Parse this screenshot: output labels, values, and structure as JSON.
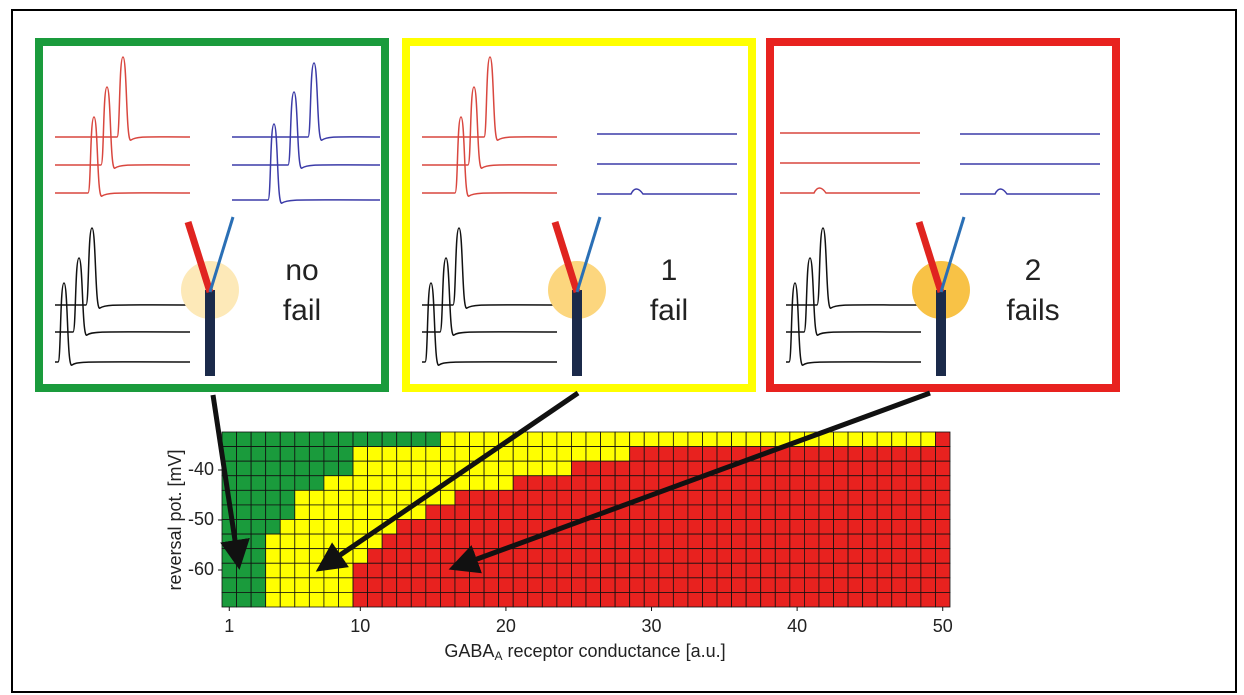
{
  "panels": [
    {
      "label": [
        "no",
        "fail"
      ],
      "color": "#1a9b3c",
      "glow": "#fde9b8"
    },
    {
      "label": [
        "1",
        "fail"
      ],
      "color": "#ffff00",
      "glow": "#fcd67e"
    },
    {
      "label": [
        "2",
        "fails"
      ],
      "color": "#e8221f",
      "glow": "#f8c246"
    }
  ],
  "chart_data": {
    "type": "heatmap",
    "ylabel": "reversal pot. [mV]",
    "xlabel": [
      "GABA",
      "A",
      " receptor conductance [a.u.]"
    ],
    "xlim": [
      0.5,
      50.5
    ],
    "xticks": [
      1,
      10,
      20,
      30,
      40,
      50
    ],
    "ylim": [
      -67.4,
      -32.4
    ],
    "yticks": [
      -40,
      -50,
      -60
    ],
    "colors": [
      "#1a9b3c",
      "#ffff00",
      "#e8221f"
    ],
    "z": [
      [
        0,
        0,
        0,
        0,
        0,
        0,
        0,
        0,
        0,
        0,
        0,
        0,
        0,
        0,
        0,
        1,
        1,
        1,
        1,
        1,
        1,
        1,
        1,
        1,
        1,
        1,
        1,
        1,
        1,
        1,
        1,
        1,
        1,
        1,
        1,
        1,
        1,
        1,
        1,
        1,
        1,
        1,
        1,
        1,
        1,
        1,
        1,
        1,
        1,
        2
      ],
      [
        0,
        0,
        0,
        0,
        0,
        0,
        0,
        0,
        0,
        1,
        1,
        1,
        1,
        1,
        1,
        1,
        1,
        1,
        1,
        1,
        1,
        1,
        1,
        1,
        1,
        1,
        1,
        1,
        2,
        2,
        2,
        2,
        2,
        2,
        2,
        2,
        2,
        2,
        2,
        2,
        2,
        2,
        2,
        2,
        2,
        2,
        2,
        2,
        2,
        2
      ],
      [
        0,
        0,
        0,
        0,
        0,
        0,
        0,
        0,
        0,
        1,
        1,
        1,
        1,
        1,
        1,
        1,
        1,
        1,
        1,
        1,
        1,
        1,
        1,
        1,
        2,
        2,
        2,
        2,
        2,
        2,
        2,
        2,
        2,
        2,
        2,
        2,
        2,
        2,
        2,
        2,
        2,
        2,
        2,
        2,
        2,
        2,
        2,
        2,
        2,
        2
      ],
      [
        0,
        0,
        0,
        0,
        0,
        0,
        0,
        1,
        1,
        1,
        1,
        1,
        1,
        1,
        1,
        1,
        1,
        1,
        1,
        1,
        2,
        2,
        2,
        2,
        2,
        2,
        2,
        2,
        2,
        2,
        2,
        2,
        2,
        2,
        2,
        2,
        2,
        2,
        2,
        2,
        2,
        2,
        2,
        2,
        2,
        2,
        2,
        2,
        2,
        2
      ],
      [
        0,
        0,
        0,
        0,
        0,
        1,
        1,
        1,
        1,
        1,
        1,
        1,
        1,
        1,
        1,
        1,
        2,
        2,
        2,
        2,
        2,
        2,
        2,
        2,
        2,
        2,
        2,
        2,
        2,
        2,
        2,
        2,
        2,
        2,
        2,
        2,
        2,
        2,
        2,
        2,
        2,
        2,
        2,
        2,
        2,
        2,
        2,
        2,
        2,
        2
      ],
      [
        0,
        0,
        0,
        0,
        0,
        1,
        1,
        1,
        1,
        1,
        1,
        1,
        1,
        1,
        2,
        2,
        2,
        2,
        2,
        2,
        2,
        2,
        2,
        2,
        2,
        2,
        2,
        2,
        2,
        2,
        2,
        2,
        2,
        2,
        2,
        2,
        2,
        2,
        2,
        2,
        2,
        2,
        2,
        2,
        2,
        2,
        2,
        2,
        2,
        2
      ],
      [
        0,
        0,
        0,
        0,
        1,
        1,
        1,
        1,
        1,
        1,
        1,
        1,
        2,
        2,
        2,
        2,
        2,
        2,
        2,
        2,
        2,
        2,
        2,
        2,
        2,
        2,
        2,
        2,
        2,
        2,
        2,
        2,
        2,
        2,
        2,
        2,
        2,
        2,
        2,
        2,
        2,
        2,
        2,
        2,
        2,
        2,
        2,
        2,
        2,
        2
      ],
      [
        0,
        0,
        0,
        1,
        1,
        1,
        1,
        1,
        1,
        1,
        1,
        2,
        2,
        2,
        2,
        2,
        2,
        2,
        2,
        2,
        2,
        2,
        2,
        2,
        2,
        2,
        2,
        2,
        2,
        2,
        2,
        2,
        2,
        2,
        2,
        2,
        2,
        2,
        2,
        2,
        2,
        2,
        2,
        2,
        2,
        2,
        2,
        2,
        2,
        2
      ],
      [
        0,
        0,
        0,
        1,
        1,
        1,
        1,
        1,
        1,
        1,
        2,
        2,
        2,
        2,
        2,
        2,
        2,
        2,
        2,
        2,
        2,
        2,
        2,
        2,
        2,
        2,
        2,
        2,
        2,
        2,
        2,
        2,
        2,
        2,
        2,
        2,
        2,
        2,
        2,
        2,
        2,
        2,
        2,
        2,
        2,
        2,
        2,
        2,
        2,
        2
      ],
      [
        0,
        0,
        0,
        1,
        1,
        1,
        1,
        1,
        1,
        2,
        2,
        2,
        2,
        2,
        2,
        2,
        2,
        2,
        2,
        2,
        2,
        2,
        2,
        2,
        2,
        2,
        2,
        2,
        2,
        2,
        2,
        2,
        2,
        2,
        2,
        2,
        2,
        2,
        2,
        2,
        2,
        2,
        2,
        2,
        2,
        2,
        2,
        2,
        2,
        2
      ],
      [
        0,
        0,
        0,
        1,
        1,
        1,
        1,
        1,
        1,
        2,
        2,
        2,
        2,
        2,
        2,
        2,
        2,
        2,
        2,
        2,
        2,
        2,
        2,
        2,
        2,
        2,
        2,
        2,
        2,
        2,
        2,
        2,
        2,
        2,
        2,
        2,
        2,
        2,
        2,
        2,
        2,
        2,
        2,
        2,
        2,
        2,
        2,
        2,
        2,
        2
      ],
      [
        0,
        0,
        0,
        1,
        1,
        1,
        1,
        1,
        1,
        2,
        2,
        2,
        2,
        2,
        2,
        2,
        2,
        2,
        2,
        2,
        2,
        2,
        2,
        2,
        2,
        2,
        2,
        2,
        2,
        2,
        2,
        2,
        2,
        2,
        2,
        2,
        2,
        2,
        2,
        2,
        2,
        2,
        2,
        2,
        2,
        2,
        2,
        2,
        2,
        2
      ]
    ]
  }
}
